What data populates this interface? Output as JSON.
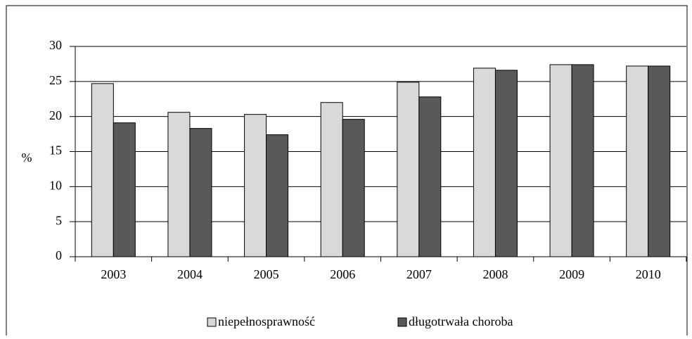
{
  "chart_data": {
    "type": "bar",
    "y_label": "%",
    "categories": [
      "2003",
      "2004",
      "2005",
      "2006",
      "2007",
      "2008",
      "2009",
      "2010"
    ],
    "series": [
      {
        "name": "niepełnosprawność",
        "color": "#d9d9d9",
        "values": [
          24.7,
          20.6,
          20.3,
          22.0,
          24.9,
          26.9,
          27.4,
          27.2
        ]
      },
      {
        "name": "długotrwała choroba",
        "color": "#595959",
        "values": [
          19.1,
          18.3,
          17.4,
          19.6,
          22.8,
          26.6,
          27.4,
          27.2
        ]
      }
    ],
    "ylim": [
      0,
      30
    ],
    "yticks": [
      0,
      5,
      10,
      15,
      20,
      25,
      30
    ],
    "grid": true,
    "legend": "bottom"
  }
}
